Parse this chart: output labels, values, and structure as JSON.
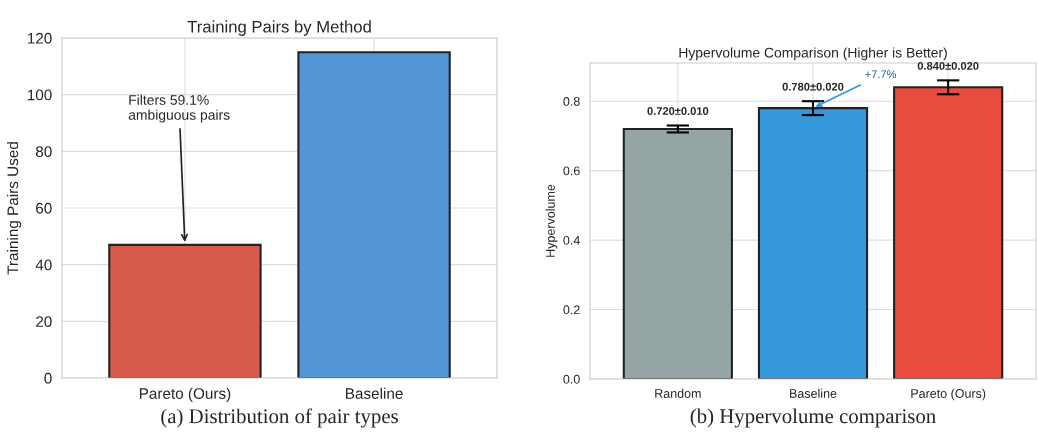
{
  "chart_data": [
    {
      "type": "bar",
      "title": "Training Pairs by Method",
      "ylabel": "Training Pairs Used",
      "categories": [
        "Pareto (Ours)",
        "Baseline"
      ],
      "values": [
        47,
        115
      ],
      "colors": [
        "#d65b4a",
        "#5296d5"
      ],
      "ylim": [
        0,
        120
      ],
      "yticks": [
        0,
        20,
        40,
        60,
        80,
        100,
        120
      ],
      "grid": true,
      "annotations": [
        {
          "text": "Filters 59.1%\nambiguous pairs",
          "x": "Pareto (Ours)",
          "y": 47
        },
        "(a) Distribution of pair types"
      ]
    },
    {
      "type": "bar",
      "title": "Hypervolume Comparison (Higher is Better)",
      "ylabel": "Hypervolume",
      "categories": [
        "Random",
        "Baseline",
        "Pareto (Ours)"
      ],
      "values": [
        0.72,
        0.78,
        0.84
      ],
      "errors": [
        0.01,
        0.02,
        0.02
      ],
      "value_labels": [
        "0.720±0.010",
        "0.780±0.020",
        "0.840±0.020"
      ],
      "colors": [
        "#95a5a6",
        "#3498db",
        "#e74c3c"
      ],
      "ylim": [
        0,
        0.91
      ],
      "yticks": [
        {
          "value": 0,
          "label": "0.0"
        },
        0.2,
        0.4,
        0.6,
        0.8
      ],
      "grid": true,
      "annotations": [
        {
          "text": "+7.7%",
          "x": "Baseline",
          "y": 0.78
        },
        "(b) Hypervolume comparison"
      ]
    }
  ]
}
